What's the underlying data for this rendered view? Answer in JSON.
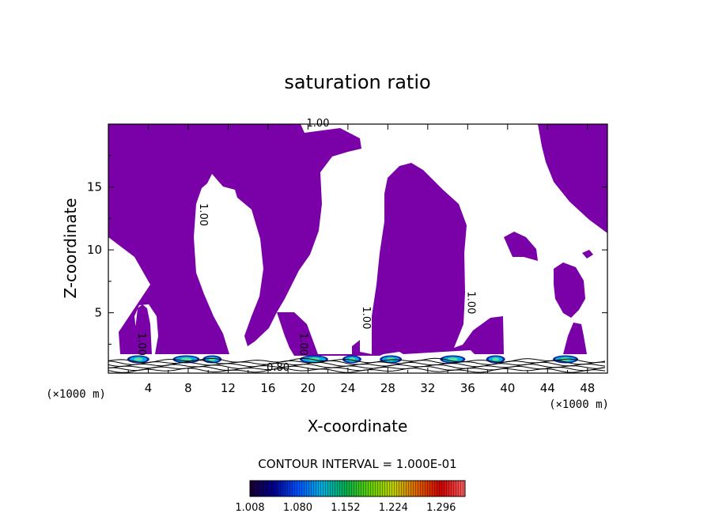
{
  "chart_data": {
    "type": "heatmap",
    "title": "saturation ratio",
    "xlabel": "X-coordinate",
    "ylabel": "Z-coordinate",
    "x_unit": "(×1000 m)",
    "y_unit": "(×1000 m)",
    "xlim": [
      0,
      50
    ],
    "ylim": [
      0.2,
      20
    ],
    "x_ticks": [
      4,
      8,
      12,
      16,
      20,
      24,
      28,
      32,
      36,
      40,
      44,
      48
    ],
    "y_ticks": [
      5,
      10,
      15
    ],
    "fill_color": "#7a00a8",
    "fill_note": "shaded where saturation ratio exceeds 1.00",
    "contour_labels": [
      {
        "text": "1.00",
        "x": 21.0,
        "z": 19.8,
        "rotation": 0
      },
      {
        "text": "1.00",
        "x": 9.2,
        "z": 12.8,
        "rotation": 90
      },
      {
        "text": "1.00",
        "x": 3.0,
        "z": 2.5,
        "rotation": 90
      },
      {
        "text": "1.00",
        "x": 19.2,
        "z": 2.5,
        "rotation": 90
      },
      {
        "text": "1.00",
        "x": 25.5,
        "z": 4.6,
        "rotation": 90
      },
      {
        "text": "1.00",
        "x": 36.0,
        "z": 5.8,
        "rotation": 90
      },
      {
        "text": "0.80",
        "x": 17.0,
        "z": 0.4,
        "rotation": 0
      }
    ],
    "contour_interval_text": "CONTOUR INTERVAL = 1.000E-01",
    "colorbar": {
      "min": 1.008,
      "max": 1.332,
      "ticks": [
        "1.008",
        "1.080",
        "1.152",
        "1.224",
        "1.296"
      ],
      "colors": [
        "#1a0030",
        "#000090",
        "#0050ff",
        "#00b0e0",
        "#00b050",
        "#60d000",
        "#c0d000",
        "#e06000",
        "#d00000",
        "#ff6060"
      ]
    }
  }
}
